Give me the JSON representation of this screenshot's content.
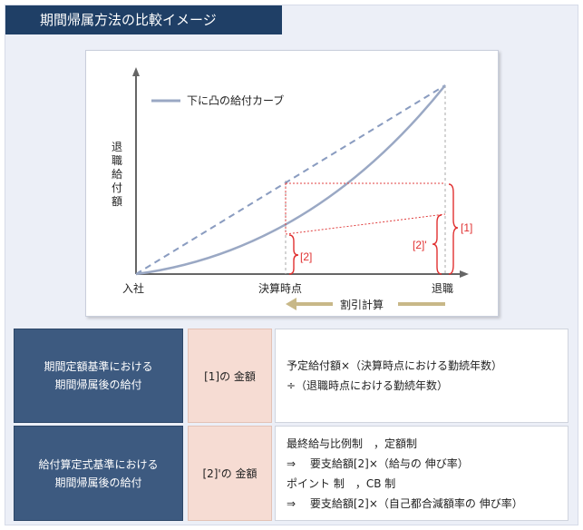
{
  "title": "期間帰属方法の比較イメージ",
  "diagram": {
    "legend": "下に凸の給付カーブ",
    "ylabel": [
      "退",
      "職",
      "給",
      "付",
      "額"
    ],
    "x_ticks": {
      "start": "入社",
      "mid": "決算時点",
      "end": "退職"
    },
    "arrow_label": "割引計算",
    "bracket_labels": {
      "b1": "[1]",
      "b2": "[2]",
      "b2p": "[2]'"
    },
    "colors": {
      "curve": "#9aa8c4",
      "dashed": "#8a9cc0",
      "dotted": "#e04040",
      "bracket": "#e03030",
      "arrow": "#c8b888"
    }
  },
  "table": {
    "rows": [
      {
        "header_lines": [
          "期間定額基準における",
          "期間帰属後の給付"
        ],
        "amount": "[1]の 金額",
        "detail_lines": [
          "予定給付額×（決算時点における勤続年数）",
          "÷（退職時点における勤続年数）"
        ]
      },
      {
        "header_lines": [
          "給付算定式基準における",
          "期間帰属後の給付"
        ],
        "amount": "[2]'の 金額",
        "detail_lines": [
          "最終給与比例制　，定額制",
          "⇒　 要支給額[2]×（給与の 伸び率）",
          "ポイント 制　，CB 制",
          "⇒　 要支給額[2]×（自己都合減額率の 伸び率）"
        ]
      }
    ]
  }
}
